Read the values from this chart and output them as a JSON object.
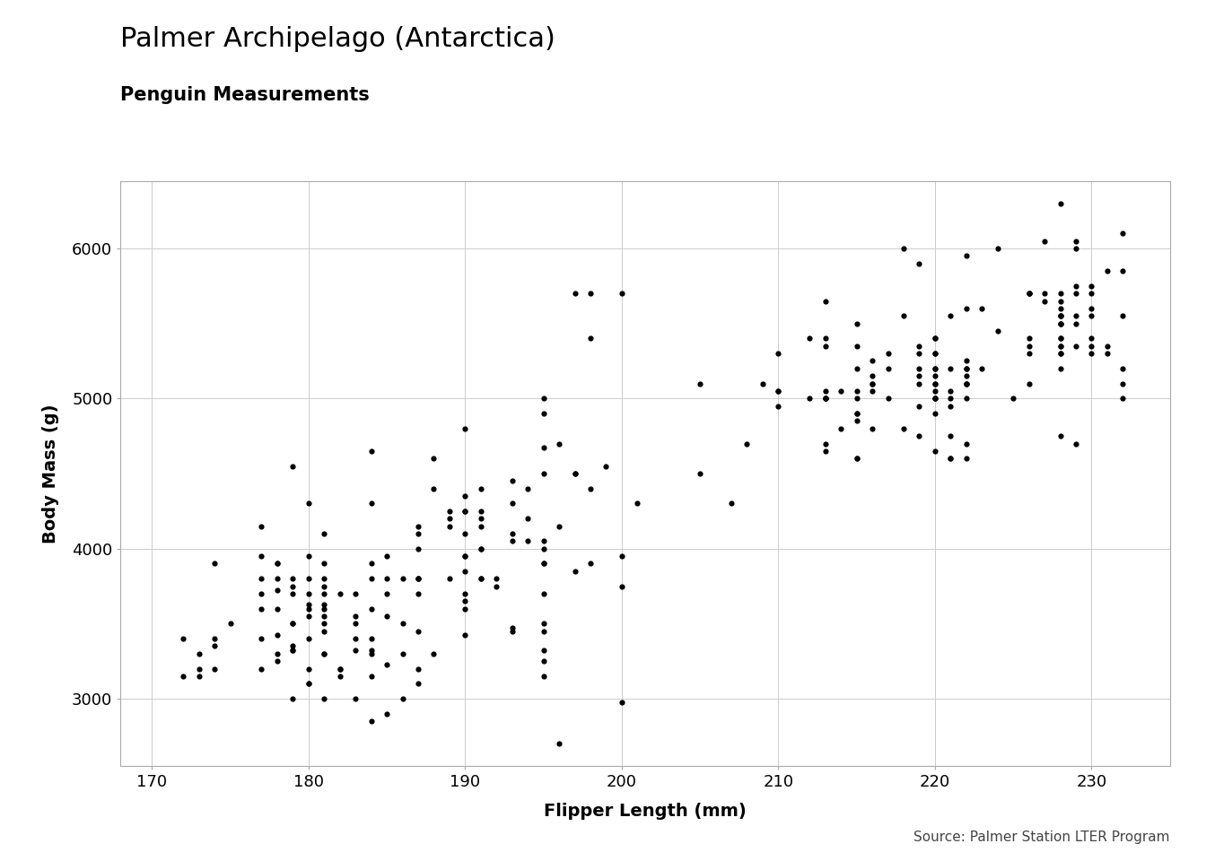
{
  "title": "Palmer Archipelago (Antarctica)",
  "subtitle": "Penguin Measurements",
  "xlabel": "Flipper Length (mm)",
  "ylabel": "Body Mass (g)",
  "source_text": "Source: Palmer Station LTER Program",
  "xlim": [
    168,
    235
  ],
  "ylim": [
    2550,
    6450
  ],
  "xticks": [
    170,
    180,
    190,
    200,
    210,
    220,
    230
  ],
  "yticks": [
    3000,
    4000,
    5000,
    6000
  ],
  "background_color": "#FFFFFF",
  "panel_background": "#FFFFFF",
  "grid_color": "#CCCCCC",
  "point_color": "#000000",
  "point_size": 20,
  "flipper_length": [
    181,
    186,
    195,
    193,
    190,
    181,
    195,
    193,
    190,
    186,
    180,
    182,
    191,
    198,
    185,
    195,
    197,
    184,
    194,
    174,
    180,
    189,
    185,
    180,
    187,
    183,
    187,
    172,
    180,
    178,
    178,
    188,
    184,
    195,
    196,
    190,
    180,
    181,
    184,
    182,
    195,
    187,
    191,
    186,
    188,
    190,
    200,
    187,
    191,
    186,
    193,
    181,
    194,
    185,
    195,
    185,
    192,
    184,
    192,
    195,
    188,
    190,
    198,
    190,
    190,
    196,
    197,
    190,
    195,
    191,
    184,
    187,
    195,
    189,
    196,
    187,
    193,
    191,
    194,
    190,
    189,
    189,
    190,
    187,
    190,
    195,
    191,
    191,
    190,
    187,
    193,
    195,
    197,
    200,
    200,
    191,
    205,
    187,
    201,
    187,
    172,
    177,
    177,
    177,
    179,
    173,
    177,
    177,
    178,
    177,
    179,
    174,
    180,
    174,
    181,
    173,
    179,
    177,
    179,
    178,
    178,
    174,
    179,
    173,
    181,
    178,
    179,
    180,
    175,
    178,
    181,
    178,
    180,
    180,
    184,
    183,
    179,
    181,
    180,
    183,
    182,
    181,
    184,
    180,
    181,
    184,
    183,
    182,
    181,
    183,
    185,
    179,
    184,
    179,
    184,
    183,
    181,
    179,
    181,
    185,
    195,
    198,
    193,
    197,
    198,
    199,
    200,
    195,
    195,
    210,
    207,
    218,
    220,
    215,
    212,
    205,
    210,
    215,
    210,
    220,
    215,
    222,
    209,
    212,
    216,
    220,
    216,
    220,
    213,
    219,
    216,
    217,
    221,
    222,
    221,
    213,
    219,
    220,
    208,
    215,
    213,
    219,
    215,
    220,
    215,
    214,
    213,
    221,
    221,
    222,
    217,
    216,
    220,
    222,
    221,
    223,
    220,
    213,
    219,
    216,
    215,
    220,
    222,
    210,
    215,
    220,
    222,
    213,
    219,
    215,
    221,
    222,
    217,
    220,
    221,
    213,
    219,
    220,
    215,
    213,
    216,
    214,
    213,
    219,
    213,
    219,
    221,
    222,
    230,
    228,
    226,
    224,
    228,
    226,
    229,
    230,
    231,
    228,
    230,
    227,
    229,
    220,
    223,
    228,
    226,
    232,
    228,
    218,
    222,
    218,
    228,
    230,
    222,
    222,
    228,
    225,
    232,
    228,
    220,
    224,
    226,
    229,
    226,
    228,
    220,
    228,
    232,
    228,
    229,
    228,
    229,
    230,
    228,
    231,
    228,
    227,
    226,
    228,
    228,
    227,
    229,
    230,
    232,
    228,
    222,
    231,
    232,
    229,
    226,
    229,
    228,
    230,
    232
  ],
  "body_mass": [
    3750,
    3800,
    3250,
    3450,
    3650,
    3625,
    4675,
    3475,
    4250,
    3300,
    3700,
    3200,
    3800,
    4400,
    3700,
    3450,
    4500,
    3325,
    4200,
    3400,
    3600,
    3800,
    3950,
    3800,
    3800,
    3550,
    3200,
    3150,
    3950,
    3250,
    3900,
    3300,
    3900,
    3325,
    4150,
    3950,
    3550,
    3300,
    4650,
    3150,
    3900,
    3100,
    4400,
    3000,
    4600,
    3425,
    2975,
    3450,
    4150,
    3500,
    4300,
    3450,
    4050,
    2900,
    3700,
    3550,
    3800,
    2850,
    3750,
    3150,
    4400,
    3600,
    3900,
    3850,
    4800,
    2700,
    4500,
    3950,
    3900,
    4200,
    3800,
    4150,
    3500,
    4200,
    4700,
    3800,
    4100,
    4250,
    4400,
    4100,
    4250,
    4150,
    3700,
    4000,
    4250,
    4050,
    4000,
    3800,
    4350,
    4100,
    4050,
    4000,
    3850,
    3950,
    3750,
    4000,
    4500,
    3700,
    4300,
    3800,
    3400,
    3600,
    3800,
    3950,
    3800,
    3300,
    4150,
    3400,
    3800,
    3700,
    4550,
    3200,
    4300,
    3350,
    4100,
    3200,
    3500,
    3200,
    3750,
    3900,
    3300,
    3900,
    3325,
    3150,
    3500,
    3425,
    3000,
    3400,
    3500,
    3600,
    3700,
    3725,
    3625,
    3200,
    4300,
    3000,
    3700,
    3600,
    3100,
    3400,
    3700,
    3000,
    3400,
    3100,
    3550,
    3300,
    3700,
    3200,
    3900,
    3325,
    3225,
    3500,
    3600,
    3325,
    3150,
    3500,
    3300,
    3350,
    3800,
    3800,
    4500,
    5700,
    4450,
    5700,
    5400,
    4550,
    5700,
    5000,
    4900,
    5050,
    4300,
    5550,
    5400,
    5200,
    5400,
    5100,
    5300,
    5050,
    4950,
    5300,
    4900,
    5200,
    5100,
    5000,
    5050,
    5000,
    5100,
    5200,
    4700,
    5150,
    4800,
    5200,
    4950,
    5100,
    4600,
    5650,
    5900,
    5300,
    4700,
    5500,
    5000,
    5100,
    4600,
    5050,
    4900,
    5050,
    5000,
    5000,
    5550,
    5000,
    5000,
    5100,
    4650,
    4600,
    4750,
    5200,
    5400,
    5000,
    5300,
    5250,
    4600,
    5100,
    5250,
    5050,
    4850,
    5200,
    4700,
    5400,
    5200,
    5000,
    4600,
    5100,
    5300,
    5100,
    5050,
    4650,
    5350,
    4900,
    5350,
    5000,
    5150,
    4800,
    5350,
    4950,
    5050,
    4750,
    5200,
    5200,
    5550,
    5400,
    5300,
    5450,
    6300,
    5700,
    5700,
    5400,
    5350,
    5550,
    5300,
    5700,
    6050,
    5150,
    5600,
    5350,
    5700,
    5000,
    5550,
    6000,
    5950,
    4800,
    5700,
    5350,
    5600,
    5100,
    5400,
    5000,
    5100,
    5300,
    5000,
    6000,
    5100,
    5350,
    5350,
    5550,
    5000,
    5600,
    6100,
    5300,
    5550,
    5500,
    4700,
    5700,
    5500,
    5300,
    4750,
    5650,
    5700,
    5200,
    5350,
    6050,
    5750,
    5600,
    5550,
    5500,
    5150,
    5850,
    5850,
    6000,
    5400,
    5500,
    5650,
    5750,
    5200
  ],
  "title_fontsize": 22,
  "subtitle_fontsize": 15,
  "axis_label_fontsize": 14,
  "tick_fontsize": 13,
  "source_fontsize": 11
}
